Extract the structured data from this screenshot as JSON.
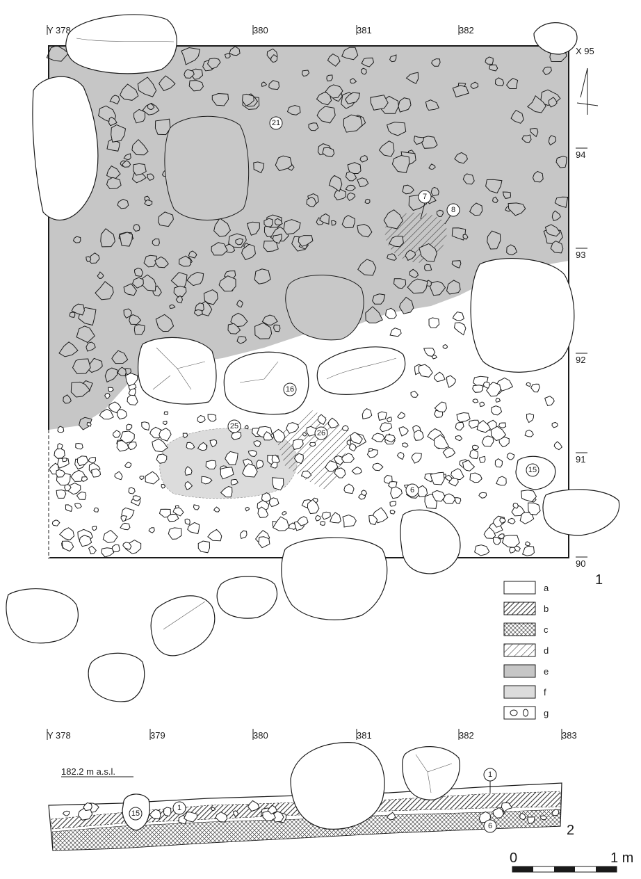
{
  "colors": {
    "a": "#ffffff",
    "e": "#c6c6c6",
    "f": "#dcdcdc",
    "ink": "#1a1a1a"
  },
  "plan": {
    "y_labels": [
      "Y 378",
      "380",
      "381",
      "382"
    ],
    "x_labels": [
      "X 95",
      "94",
      "93",
      "92",
      "91",
      "90"
    ],
    "figure_number": "1",
    "feature_numbers": [
      "21",
      "7",
      "8",
      "16",
      "25",
      "26",
      "6",
      "15"
    ]
  },
  "legend": {
    "items": [
      {
        "key": "a",
        "label": "a",
        "pattern": "blank"
      },
      {
        "key": "b",
        "label": "b",
        "pattern": "dense-hatch"
      },
      {
        "key": "c",
        "label": "c",
        "pattern": "crosshatch"
      },
      {
        "key": "d",
        "label": "d",
        "pattern": "diagonal"
      },
      {
        "key": "e",
        "label": "e",
        "pattern": "dark-grey"
      },
      {
        "key": "f",
        "label": "f",
        "pattern": "light-grey"
      },
      {
        "key": "g",
        "label": "g",
        "pattern": "stones"
      }
    ]
  },
  "section": {
    "y_labels": [
      "Y 378",
      "379",
      "380",
      "381",
      "382",
      "383"
    ],
    "elevation": "182.2 m a.s.l.",
    "figure_number": "2",
    "feature_numbers": [
      "15",
      "1",
      "1",
      "6"
    ]
  },
  "scale": {
    "start": "0",
    "end": "1 m"
  }
}
